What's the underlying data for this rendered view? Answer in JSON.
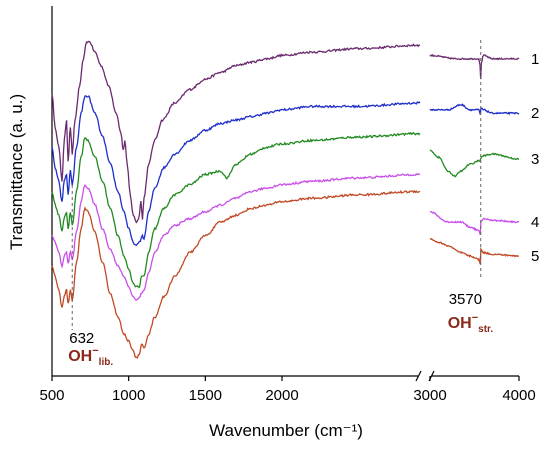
{
  "chart_data": {
    "type": "line",
    "title": "",
    "xlabel": "Wavenumber (cm⁻¹)",
    "ylabel": "Transmittance (a. u.)",
    "axis_break": true,
    "xlim_left": [
      500,
      2900
    ],
    "xlim_right": [
      3000,
      4000
    ],
    "x_ticks": [
      "500",
      "1000",
      "1500",
      "2000",
      "3000",
      "4000"
    ],
    "x_ticks_left_values": [
      500,
      1000,
      1500,
      2000
    ],
    "x_ticks_right_values": [
      3000,
      4000
    ],
    "grid": false,
    "legend": "none",
    "series": [
      {
        "name": "1",
        "color": "#6a2a6e",
        "left": [
          [
            500,
            0.78
          ],
          [
            520,
            0.68
          ],
          [
            545,
            0.62
          ],
          [
            565,
            0.52
          ],
          [
            580,
            0.64
          ],
          [
            595,
            0.7
          ],
          [
            605,
            0.58
          ],
          [
            620,
            0.68
          ],
          [
            632,
            0.6
          ],
          [
            650,
            0.7
          ],
          [
            680,
            0.8
          ],
          [
            705,
            0.88
          ],
          [
            725,
            0.93
          ],
          [
            745,
            0.93
          ],
          [
            780,
            0.9
          ],
          [
            820,
            0.86
          ],
          [
            870,
            0.8
          ],
          [
            920,
            0.72
          ],
          [
            950,
            0.66
          ],
          [
            965,
            0.61
          ],
          [
            975,
            0.64
          ],
          [
            990,
            0.57
          ],
          [
            1010,
            0.48
          ],
          [
            1030,
            0.42
          ],
          [
            1050,
            0.4
          ],
          [
            1065,
            0.41
          ],
          [
            1080,
            0.46
          ],
          [
            1090,
            0.41
          ],
          [
            1100,
            0.47
          ],
          [
            1130,
            0.57
          ],
          [
            1170,
            0.64
          ],
          [
            1220,
            0.7
          ],
          [
            1300,
            0.75
          ],
          [
            1400,
            0.79
          ],
          [
            1500,
            0.82
          ],
          [
            1600,
            0.84
          ],
          [
            1700,
            0.86
          ],
          [
            1800,
            0.87
          ],
          [
            1900,
            0.88
          ],
          [
            2000,
            0.89
          ],
          [
            2200,
            0.9
          ],
          [
            2500,
            0.91
          ],
          [
            2900,
            0.92
          ]
        ],
        "right": [
          [
            3000,
            0.89
          ],
          [
            3300,
            0.88
          ],
          [
            3550,
            0.88
          ],
          [
            3562,
            0.86
          ],
          [
            3570,
            0.82
          ],
          [
            3578,
            0.87
          ],
          [
            3600,
            0.89
          ],
          [
            3700,
            0.88
          ],
          [
            4000,
            0.88
          ]
        ]
      },
      {
        "name": "2",
        "color": "#1e2ec8",
        "left": [
          [
            500,
            0.62
          ],
          [
            520,
            0.56
          ],
          [
            545,
            0.52
          ],
          [
            565,
            0.46
          ],
          [
            580,
            0.52
          ],
          [
            595,
            0.54
          ],
          [
            605,
            0.48
          ],
          [
            620,
            0.55
          ],
          [
            632,
            0.51
          ],
          [
            660,
            0.62
          ],
          [
            690,
            0.72
          ],
          [
            715,
            0.77
          ],
          [
            735,
            0.77
          ],
          [
            780,
            0.72
          ],
          [
            830,
            0.65
          ],
          [
            880,
            0.57
          ],
          [
            930,
            0.49
          ],
          [
            970,
            0.43
          ],
          [
            1000,
            0.38
          ],
          [
            1030,
            0.34
          ],
          [
            1050,
            0.33
          ],
          [
            1070,
            0.34
          ],
          [
            1090,
            0.36
          ],
          [
            1100,
            0.35
          ],
          [
            1130,
            0.43
          ],
          [
            1170,
            0.5
          ],
          [
            1230,
            0.56
          ],
          [
            1300,
            0.6
          ],
          [
            1400,
            0.64
          ],
          [
            1500,
            0.67
          ],
          [
            1600,
            0.69
          ],
          [
            1700,
            0.7
          ],
          [
            1800,
            0.71
          ],
          [
            1900,
            0.72
          ],
          [
            2000,
            0.73
          ],
          [
            2200,
            0.74
          ],
          [
            2500,
            0.74
          ],
          [
            2900,
            0.75
          ]
        ],
        "right": [
          [
            3000,
            0.73
          ],
          [
            3200,
            0.73
          ],
          [
            3350,
            0.745
          ],
          [
            3450,
            0.73
          ],
          [
            3550,
            0.73
          ],
          [
            3565,
            0.715
          ],
          [
            3572,
            0.735
          ],
          [
            3600,
            0.73
          ],
          [
            3700,
            0.72
          ],
          [
            4000,
            0.72
          ]
        ]
      },
      {
        "name": "3",
        "color": "#228a22",
        "left": [
          [
            500,
            0.49
          ],
          [
            520,
            0.45
          ],
          [
            545,
            0.42
          ],
          [
            565,
            0.37
          ],
          [
            580,
            0.41
          ],
          [
            595,
            0.43
          ],
          [
            605,
            0.38
          ],
          [
            620,
            0.43
          ],
          [
            632,
            0.39
          ],
          [
            660,
            0.49
          ],
          [
            690,
            0.59
          ],
          [
            715,
            0.65
          ],
          [
            735,
            0.64
          ],
          [
            780,
            0.59
          ],
          [
            830,
            0.52
          ],
          [
            880,
            0.44
          ],
          [
            930,
            0.36
          ],
          [
            970,
            0.3
          ],
          [
            1000,
            0.26
          ],
          [
            1030,
            0.22
          ],
          [
            1050,
            0.21
          ],
          [
            1070,
            0.21
          ],
          [
            1085,
            0.24
          ],
          [
            1100,
            0.24
          ],
          [
            1130,
            0.31
          ],
          [
            1170,
            0.38
          ],
          [
            1230,
            0.44
          ],
          [
            1300,
            0.48
          ],
          [
            1400,
            0.51
          ],
          [
            1500,
            0.54
          ],
          [
            1600,
            0.55
          ],
          [
            1640,
            0.53
          ],
          [
            1700,
            0.57
          ],
          [
            1800,
            0.6
          ],
          [
            1900,
            0.62
          ],
          [
            2000,
            0.63
          ],
          [
            2200,
            0.64
          ],
          [
            2500,
            0.65
          ],
          [
            2900,
            0.66
          ]
        ],
        "right": [
          [
            3000,
            0.61
          ],
          [
            3100,
            0.59
          ],
          [
            3200,
            0.55
          ],
          [
            3280,
            0.535
          ],
          [
            3350,
            0.55
          ],
          [
            3450,
            0.57
          ],
          [
            3550,
            0.58
          ],
          [
            3600,
            0.595
          ],
          [
            3700,
            0.6
          ],
          [
            4000,
            0.585
          ]
        ]
      },
      {
        "name": "4",
        "color": "#c84fe8",
        "left": [
          [
            500,
            0.36
          ],
          [
            520,
            0.34
          ],
          [
            545,
            0.31
          ],
          [
            565,
            0.27
          ],
          [
            580,
            0.3
          ],
          [
            595,
            0.31
          ],
          [
            605,
            0.28
          ],
          [
            620,
            0.31
          ],
          [
            632,
            0.29
          ],
          [
            660,
            0.37
          ],
          [
            690,
            0.46
          ],
          [
            715,
            0.51
          ],
          [
            735,
            0.5
          ],
          [
            780,
            0.45
          ],
          [
            830,
            0.38
          ],
          [
            880,
            0.32
          ],
          [
            930,
            0.27
          ],
          [
            970,
            0.24
          ],
          [
            1000,
            0.21
          ],
          [
            1030,
            0.18
          ],
          [
            1050,
            0.17
          ],
          [
            1070,
            0.18
          ],
          [
            1085,
            0.19
          ],
          [
            1100,
            0.2
          ],
          [
            1130,
            0.25
          ],
          [
            1170,
            0.31
          ],
          [
            1230,
            0.36
          ],
          [
            1300,
            0.39
          ],
          [
            1400,
            0.41
          ],
          [
            1500,
            0.43
          ],
          [
            1600,
            0.45
          ],
          [
            1700,
            0.47
          ],
          [
            1800,
            0.49
          ],
          [
            1900,
            0.5
          ],
          [
            2000,
            0.51
          ],
          [
            2200,
            0.52
          ],
          [
            2500,
            0.53
          ],
          [
            2900,
            0.54
          ]
        ],
        "right": [
          [
            3000,
            0.43
          ],
          [
            3200,
            0.4
          ],
          [
            3350,
            0.4
          ],
          [
            3450,
            0.385
          ],
          [
            3550,
            0.375
          ],
          [
            3565,
            0.36
          ],
          [
            3572,
            0.4
          ],
          [
            3600,
            0.41
          ],
          [
            3700,
            0.405
          ],
          [
            4000,
            0.4
          ]
        ]
      },
      {
        "name": "5",
        "color": "#c04a25",
        "left": [
          [
            500,
            0.27
          ],
          [
            520,
            0.24
          ],
          [
            545,
            0.2
          ],
          [
            565,
            0.15
          ],
          [
            580,
            0.18
          ],
          [
            595,
            0.2
          ],
          [
            605,
            0.16
          ],
          [
            620,
            0.2
          ],
          [
            632,
            0.17
          ],
          [
            660,
            0.28
          ],
          [
            690,
            0.38
          ],
          [
            715,
            0.44
          ],
          [
            735,
            0.43
          ],
          [
            780,
            0.37
          ],
          [
            830,
            0.28
          ],
          [
            880,
            0.19
          ],
          [
            930,
            0.12
          ],
          [
            970,
            0.07
          ],
          [
            1000,
            0.05
          ],
          [
            1030,
            0.02
          ],
          [
            1050,
            0.0
          ],
          [
            1070,
            0.01
          ],
          [
            1085,
            0.04
          ],
          [
            1100,
            0.03
          ],
          [
            1130,
            0.07
          ],
          [
            1170,
            0.12
          ],
          [
            1230,
            0.18
          ],
          [
            1300,
            0.24
          ],
          [
            1400,
            0.31
          ],
          [
            1500,
            0.36
          ],
          [
            1600,
            0.4
          ],
          [
            1700,
            0.42
          ],
          [
            1800,
            0.44
          ],
          [
            1900,
            0.45
          ],
          [
            2000,
            0.46
          ],
          [
            2200,
            0.47
          ],
          [
            2500,
            0.48
          ],
          [
            2900,
            0.49
          ]
        ],
        "right": [
          [
            3000,
            0.35
          ],
          [
            3100,
            0.34
          ],
          [
            3200,
            0.33
          ],
          [
            3350,
            0.31
          ],
          [
            3450,
            0.3
          ],
          [
            3550,
            0.29
          ],
          [
            3565,
            0.275
          ],
          [
            3572,
            0.32
          ],
          [
            3600,
            0.31
          ],
          [
            3700,
            0.305
          ],
          [
            4000,
            0.3
          ]
        ]
      }
    ],
    "annotations": [
      {
        "value": "632",
        "group": "OH",
        "superscript": "−",
        "subscript": "lib.",
        "x": 632,
        "panel": "left",
        "color": "#8b2a1a"
      },
      {
        "value": "3570",
        "group": "OH",
        "superscript": "−",
        "subscript": "str.",
        "x": 3570,
        "panel": "right",
        "color": "#8b2a1a"
      }
    ]
  }
}
